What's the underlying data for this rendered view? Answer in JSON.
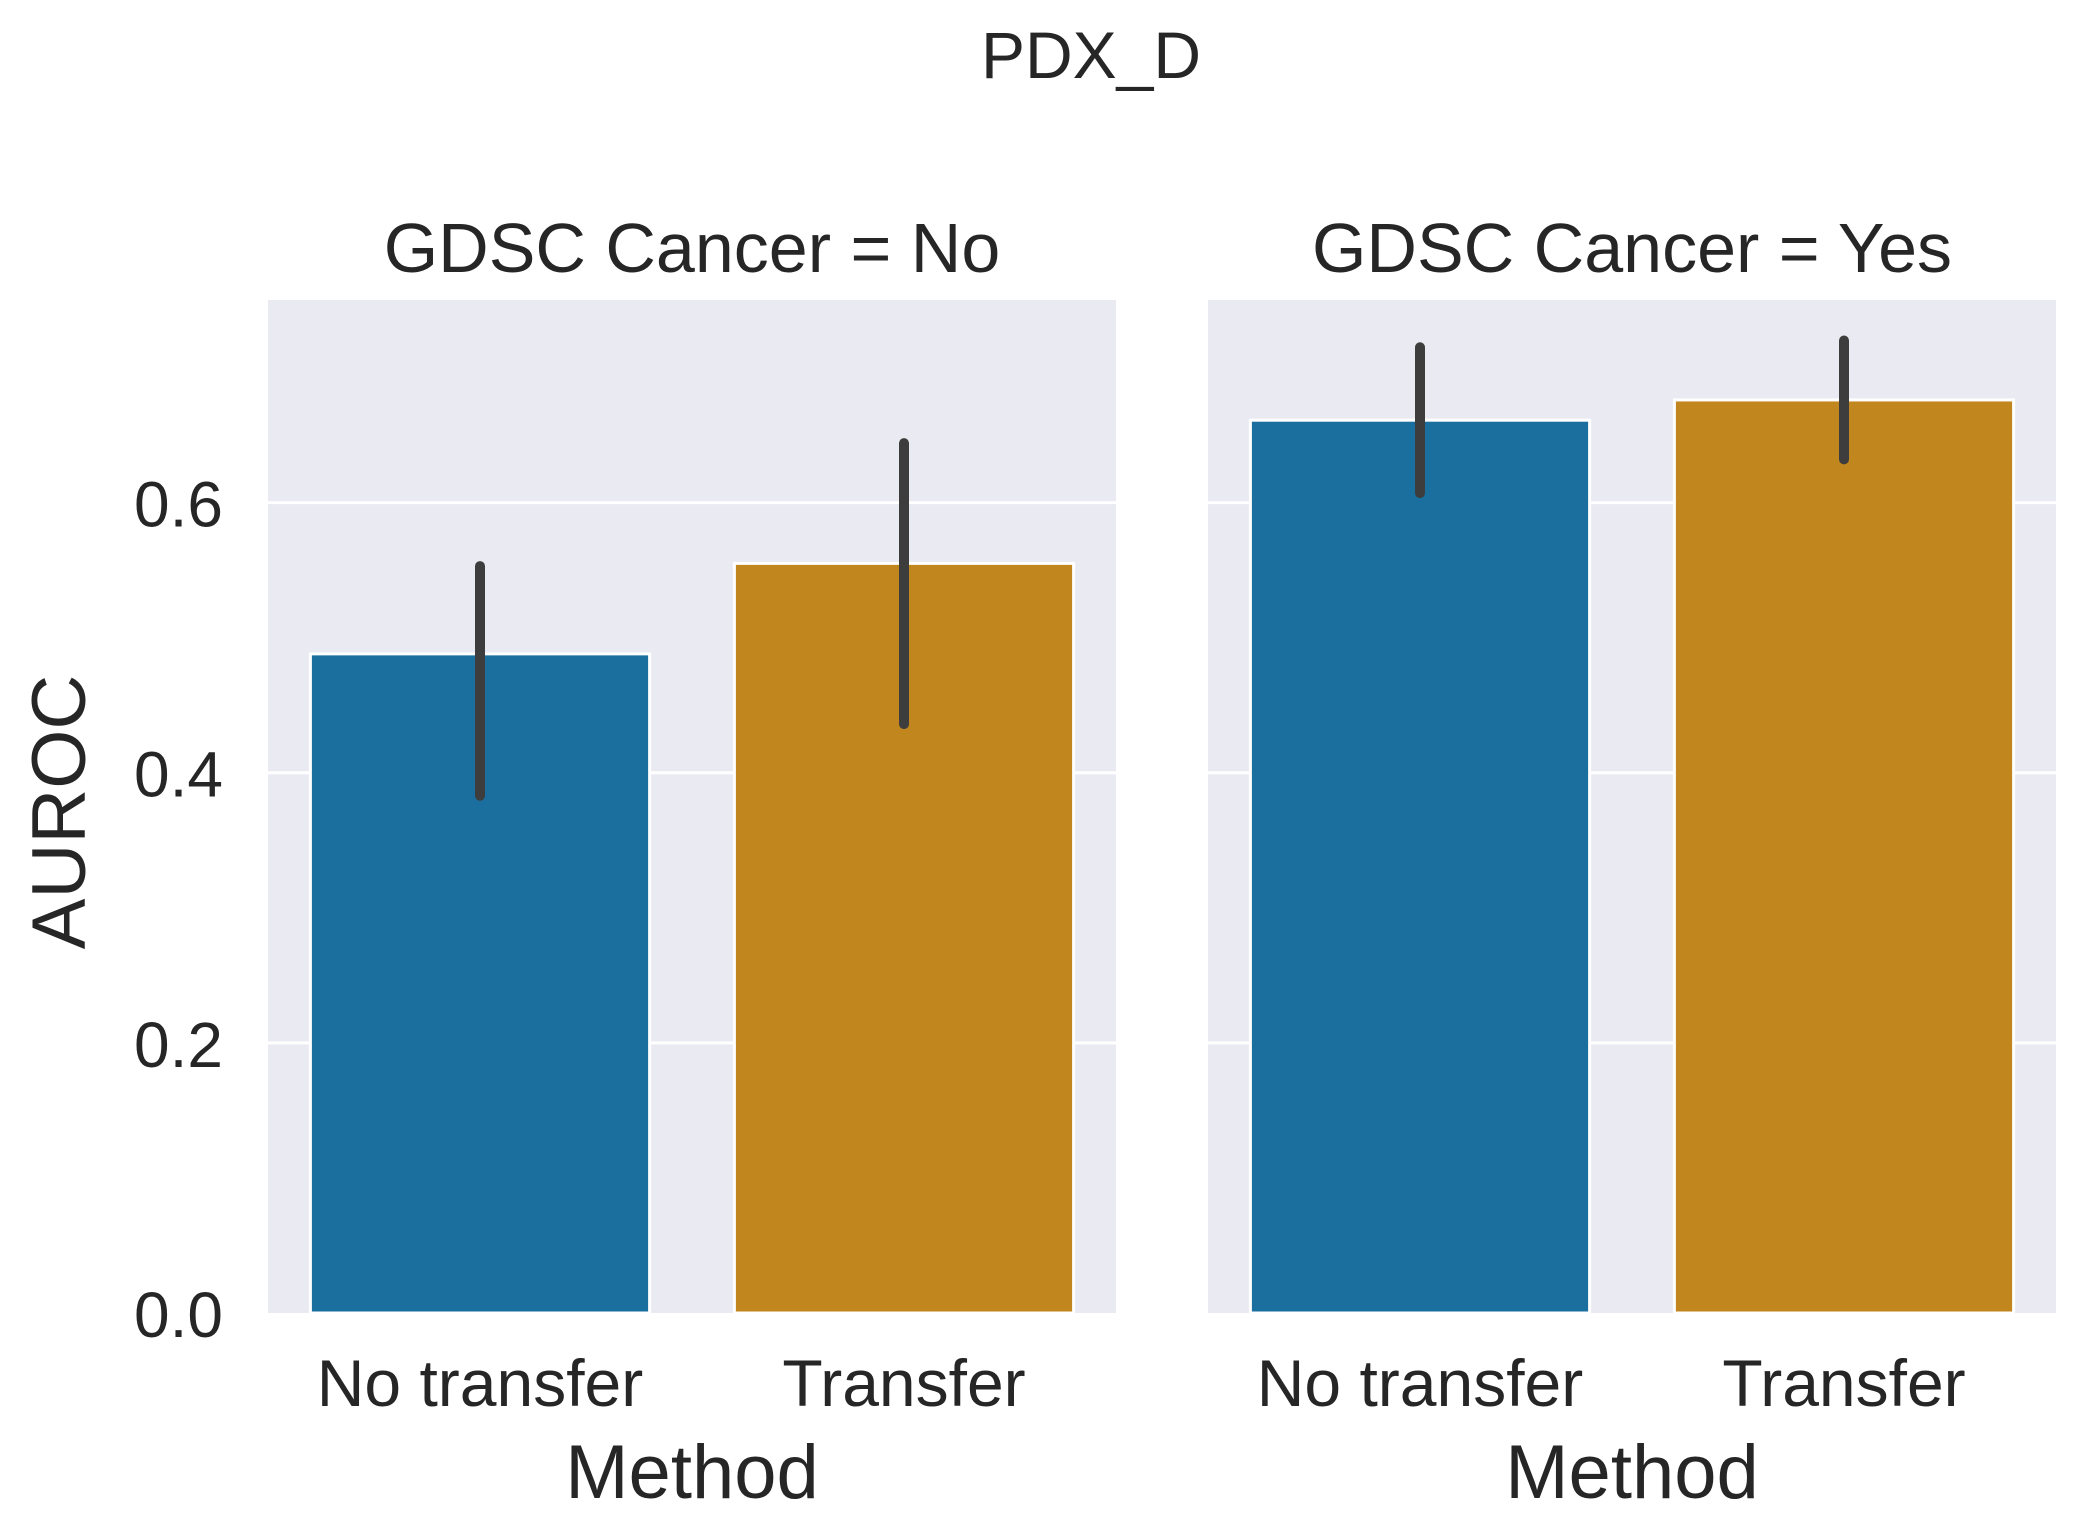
{
  "chart_data": {
    "type": "bar",
    "title": "PDX_D",
    "ylabel": "AUROC",
    "ylim": [
      0,
      0.75
    ],
    "yticks": [
      0.0,
      0.2,
      0.4,
      0.6
    ],
    "ytick_labels": [
      "0.0",
      "0.2",
      "0.4",
      "0.6"
    ],
    "grid": true,
    "colors": {
      "No transfer": "#1a6f9e",
      "Transfer": "#c2861f",
      "panel_bg": "#eaeaf2",
      "errbar": "#3d3d3d"
    },
    "panels": [
      {
        "title": "GDSC Cancer = No",
        "xlabel": "Method",
        "categories": [
          "No transfer",
          "Transfer"
        ],
        "values": [
          0.488,
          0.555
        ],
        "error_low": [
          0.383,
          0.436
        ],
        "error_high": [
          0.553,
          0.644
        ]
      },
      {
        "title": "GDSC Cancer = Yes",
        "xlabel": "Method",
        "categories": [
          "No transfer",
          "Transfer"
        ],
        "values": [
          0.661,
          0.676
        ],
        "error_low": [
          0.607,
          0.632
        ],
        "error_high": [
          0.715,
          0.72
        ]
      }
    ]
  }
}
